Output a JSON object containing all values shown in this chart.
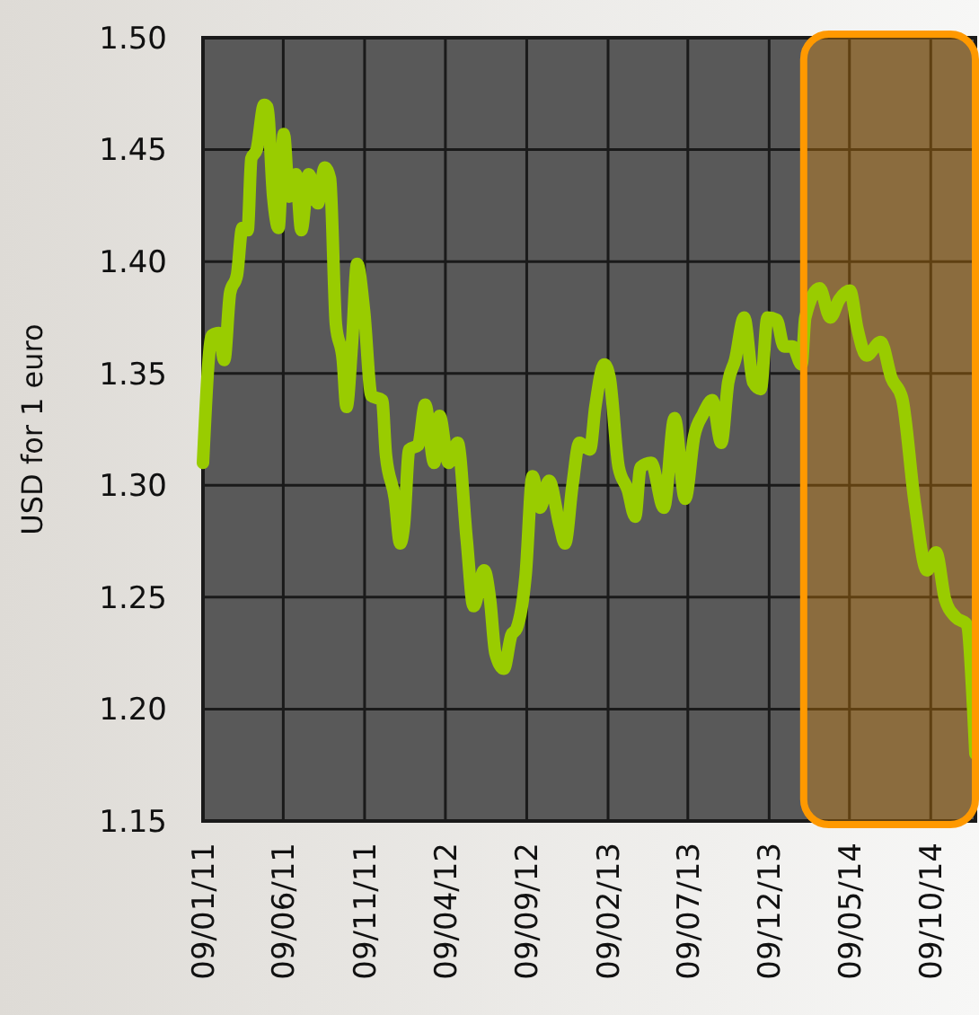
{
  "chart_data": {
    "type": "line",
    "ylabel": "USD for 1 euro",
    "x": [
      "2011-01-09",
      "2011-01-26",
      "2011-02-08",
      "2011-02-18",
      "2011-03-01",
      "2011-03-14",
      "2011-03-24",
      "2011-04-03",
      "2011-04-10",
      "2011-04-20",
      "2011-05-04",
      "2011-05-10",
      "2011-05-21",
      "2011-05-31",
      "2011-06-10",
      "2011-06-20",
      "2011-07-03",
      "2011-07-13",
      "2011-07-27",
      "2011-08-13",
      "2011-08-26",
      "2011-09-05",
      "2011-09-16",
      "2011-09-29",
      "2011-10-06",
      "2011-10-16",
      "2011-10-26",
      "2011-11-08",
      "2011-11-22",
      "2011-12-12",
      "2011-12-19",
      "2012-01-05",
      "2012-01-15",
      "2012-01-22",
      "2012-02-01",
      "2012-02-18",
      "2012-03-02",
      "2012-03-19",
      "2012-03-29",
      "2012-04-15",
      "2012-05-02",
      "2012-05-19",
      "2012-06-01",
      "2012-06-21",
      "2012-07-02",
      "2012-07-12",
      "2012-07-28",
      "2012-08-11",
      "2012-08-21",
      "2012-09-07",
      "2012-09-20",
      "2012-10-04",
      "2012-10-21",
      "2012-11-10",
      "2012-11-20",
      "2012-12-04",
      "2012-12-17",
      "2013-01-06",
      "2013-01-16",
      "2013-02-02",
      "2013-02-12",
      "2013-03-01",
      "2013-03-18",
      "2013-04-01",
      "2013-04-11",
      "2013-05-01",
      "2013-05-25",
      "2013-06-14",
      "2013-07-04",
      "2013-07-21",
      "2013-08-07",
      "2013-08-24",
      "2013-09-10",
      "2013-09-23",
      "2013-10-06",
      "2013-10-23",
      "2013-11-09",
      "2013-11-23",
      "2013-12-06",
      "2013-12-23",
      "2014-01-06",
      "2014-01-22",
      "2014-02-08",
      "2014-02-15",
      "2014-03-14",
      "2014-04-03",
      "2014-04-20",
      "2014-05-10",
      "2014-05-24",
      "2014-06-10",
      "2014-07-07",
      "2014-07-27",
      "2014-08-16",
      "2014-09-09",
      "2014-10-02",
      "2014-10-19",
      "2014-11-05",
      "2014-11-25",
      "2014-12-15",
      "2015-01-01"
    ],
    "series": [
      {
        "color": "#99cc00",
        "values": [
          1.31,
          1.367,
          1.368,
          1.356,
          1.386,
          1.394,
          1.415,
          1.414,
          1.446,
          1.45,
          1.47,
          1.469,
          1.429,
          1.415,
          1.457,
          1.429,
          1.439,
          1.414,
          1.439,
          1.426,
          1.442,
          1.437,
          1.372,
          1.356,
          1.335,
          1.362,
          1.399,
          1.378,
          1.34,
          1.338,
          1.314,
          1.294,
          1.274,
          1.282,
          1.316,
          1.318,
          1.336,
          1.31,
          1.331,
          1.31,
          1.319,
          1.276,
          1.246,
          1.262,
          1.249,
          1.225,
          1.218,
          1.233,
          1.236,
          1.26,
          1.304,
          1.29,
          1.302,
          1.282,
          1.274,
          1.3,
          1.319,
          1.316,
          1.335,
          1.354,
          1.348,
          1.308,
          1.298,
          1.286,
          1.308,
          1.31,
          1.29,
          1.33,
          1.294,
          1.322,
          1.332,
          1.338,
          1.319,
          1.346,
          1.356,
          1.375,
          1.346,
          1.343,
          1.375,
          1.374,
          1.362,
          1.362,
          1.354,
          1.375,
          1.388,
          1.375,
          1.383,
          1.387,
          1.37,
          1.358,
          1.364,
          1.348,
          1.339,
          1.292,
          1.262,
          1.27,
          1.249,
          1.241,
          1.238,
          1.18
        ]
      }
    ],
    "xlim": [
      "2011-01-09",
      "2015-01-01"
    ],
    "xticks": [
      {
        "value": "2011-01-09",
        "label": "09/01/11"
      },
      {
        "value": "2011-06-09",
        "label": "09/06/11"
      },
      {
        "value": "2011-11-09",
        "label": "09/11/11"
      },
      {
        "value": "2012-04-09",
        "label": "09/04/12"
      },
      {
        "value": "2012-09-09",
        "label": "09/09/12"
      },
      {
        "value": "2013-02-09",
        "label": "09/02/13"
      },
      {
        "value": "2013-07-09",
        "label": "09/07/13"
      },
      {
        "value": "2013-12-09",
        "label": "09/12/13"
      },
      {
        "value": "2014-05-09",
        "label": "09/05/14"
      },
      {
        "value": "2014-10-09",
        "label": "09/10/14"
      }
    ],
    "ylim": [
      1.15,
      1.5
    ],
    "yticks": [
      1.15,
      {
        "value": 1.2,
        "label": "1.20"
      },
      1.25,
      {
        "value": 1.3,
        "label": "1.30"
      },
      1.35,
      {
        "value": 1.4,
        "label": "1.40"
      },
      1.45,
      {
        "value": 1.5,
        "label": "1.50"
      }
    ],
    "bands": [
      {
        "axis": "x",
        "from": "2014-02-12",
        "to": "2015-01-01",
        "color": "#ff9900"
      }
    ],
    "grid": true
  }
}
